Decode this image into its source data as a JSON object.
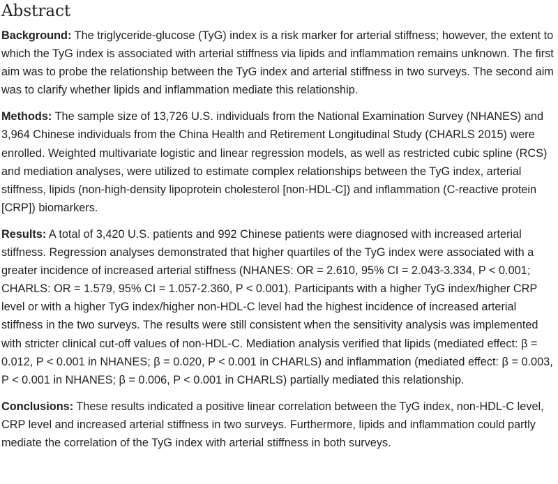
{
  "heading": "Abstract",
  "sections": [
    {
      "label": "Background:",
      "text": "The triglyceride-glucose (TyG) index is a risk marker for arterial stiffness; however, the extent to which the TyG index is associated with arterial stiffness via lipids and inflammation remains unknown. The first aim was to probe the relationship between the TyG index and arterial stiffness in two surveys. The second aim was to clarify whether lipids and inflammation mediate this relationship."
    },
    {
      "label": "Methods:",
      "text": "The sample size of 13,726 U.S. individuals from the National Examination Survey (NHANES) and 3,964 Chinese individuals from the China Health and Retirement Longitudinal Study (CHARLS 2015) were enrolled. Weighted multivariate logistic and linear regression models, as well as restricted cubic spline (RCS) and mediation analyses, were utilized to estimate complex relationships between the TyG index, arterial stiffness, lipids (non-high-density lipoprotein cholesterol [non-HDL-C]) and inflammation (C-reactive protein [CRP]) biomarkers."
    },
    {
      "label": "Results:",
      "text": "A total of 3,420 U.S. patients and 992 Chinese patients were diagnosed with increased arterial stiffness. Regression analyses demonstrated that higher quartiles of the TyG index were associated with a greater incidence of increased arterial stiffness (NHANES: OR = 2.610, 95% CI = 2.043-3.334, P < 0.001; CHARLS: OR = 1.579, 95% CI = 1.057-2.360, P < 0.001). Participants with a higher TyG index/higher CRP level or with a higher TyG index/higher non-HDL-C level had the highest incidence of increased arterial stiffness in the two surveys. The results were still consistent when the sensitivity analysis was implemented with stricter clinical cut-off values of non-HDL-C. Mediation analysis verified that lipids (mediated effect: β = 0.012, P < 0.001 in NHANES; β = 0.020, P < 0.001 in CHARLS) and inflammation (mediated effect: β = 0.003, P < 0.001 in NHANES; β = 0.006, P < 0.001 in CHARLS) partially mediated this relationship."
    },
    {
      "label": "Conclusions:",
      "text": "These results indicated a positive linear correlation between the TyG index, non-HDL-C level, CRP level and increased arterial stiffness in two surveys. Furthermore, lipids and inflammation could partly mediate the correlation of the TyG index with arterial stiffness in both surveys."
    }
  ]
}
